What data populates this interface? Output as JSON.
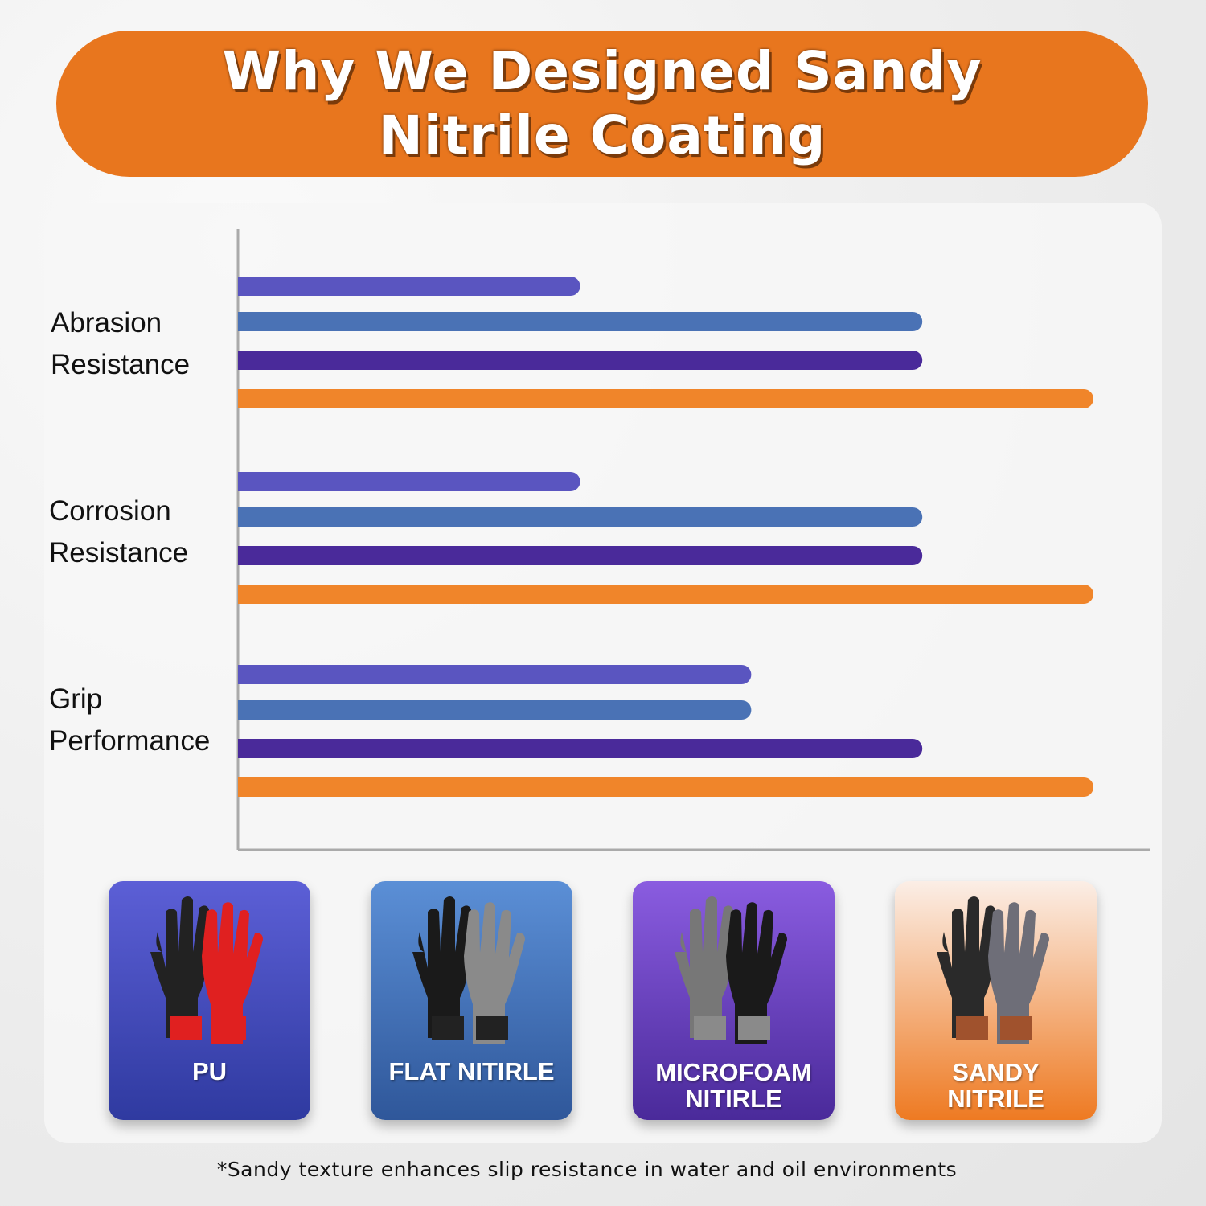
{
  "header": {
    "title_line1": "Why We Designed Sandy",
    "title_line2": "Nitrile Coating"
  },
  "chart_data": {
    "type": "bar",
    "orientation": "horizontal",
    "categories": [
      "Abrasion Resistance",
      "Corrosion Resistance",
      "Grip Performance"
    ],
    "category_lines": [
      [
        "Abrasion",
        "Resistance"
      ],
      [
        "Corrosion",
        "Resistance"
      ],
      [
        "Grip",
        "Performance"
      ]
    ],
    "series": [
      {
        "name": "PU",
        "values": [
          2,
          2,
          3
        ],
        "color": "#5a55c0"
      },
      {
        "name": "FLAT NITIRLE",
        "values": [
          4,
          4,
          3
        ],
        "color": "#4a72b5"
      },
      {
        "name": "MICROFOAM NITIRLE",
        "values": [
          4,
          4,
          4
        ],
        "color": "#4a2a9a"
      },
      {
        "name": "SANDY NITRILE",
        "values": [
          5,
          5,
          5
        ],
        "color": "#f0852a"
      }
    ],
    "xlim": [
      0,
      5.3
    ],
    "grid": false,
    "axis_tick_labels": false
  },
  "legend_cards": [
    {
      "lines": [
        "PU"
      ],
      "gradient": [
        "#5c5fd6",
        "#2f3aa0"
      ],
      "glove": "red-black-pu-glove"
    },
    {
      "lines": [
        "FLAT NITIRLE"
      ],
      "gradient": [
        "#5b8fd6",
        "#2f579a"
      ],
      "glove": "black-flat-nitrile-glove"
    },
    {
      "lines": [
        "MICROFOAM",
        "NITIRLE"
      ],
      "gradient": [
        "#8a5ce0",
        "#4a2a9a"
      ],
      "glove": "gray-microfoam-glove"
    },
    {
      "lines": [
        "SANDY",
        "NITRILE"
      ],
      "gradient": [
        "#fbeee6",
        "#ee7a22"
      ],
      "glove": "sandy-nitrile-glove"
    }
  ],
  "footnote": "*Sandy texture enhances slip resistance in water and oil environments"
}
